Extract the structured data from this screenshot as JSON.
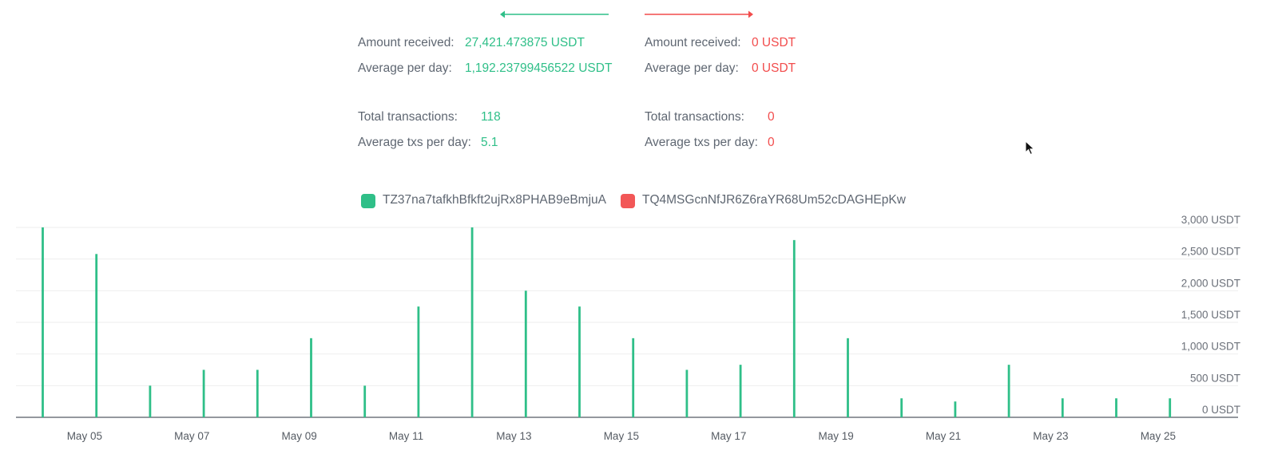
{
  "left_panel": {
    "color": "#2fbf88",
    "amount_received_label": "Amount received:",
    "amount_received_value": "27,421.473875 USDT",
    "avg_per_day_label": "Average per day:",
    "avg_per_day_value": "1,192.23799456522 USDT",
    "total_tx_label": "Total transactions:",
    "total_tx_value": "118",
    "avg_tx_label": "Average txs per day:",
    "avg_tx_value": "5.1"
  },
  "right_panel": {
    "color": "#f24c4c",
    "amount_received_label": "Amount received:",
    "amount_received_value": "0 USDT",
    "avg_per_day_label": "Average per day:",
    "avg_per_day_value": "0 USDT",
    "total_tx_label": "Total transactions:",
    "total_tx_value": "0",
    "avg_tx_label": "Average txs per day:",
    "avg_tx_value": "0"
  },
  "chart_data": {
    "type": "bar",
    "title": "",
    "xlabel": "",
    "ylabel": "",
    "ylim": [
      0,
      3000
    ],
    "grid": true,
    "legend_position": "top-center",
    "y_ticks": [
      "0 USDT",
      "500 USDT",
      "1,000 USDT",
      "1,500 USDT",
      "2,000 USDT",
      "2,500 USDT",
      "3,000 USDT"
    ],
    "x_tick_labels": [
      "May 05",
      "May 07",
      "May 09",
      "May 11",
      "May 13",
      "May 15",
      "May 17",
      "May 19",
      "May 21",
      "May 23",
      "May 25"
    ],
    "categories": [
      "May 04",
      "May 05",
      "May 06",
      "May 07",
      "May 08",
      "May 09",
      "May 10",
      "May 11",
      "May 12",
      "May 13",
      "May 14",
      "May 15",
      "May 16",
      "May 17",
      "May 18",
      "May 19",
      "May 20",
      "May 21",
      "May 22",
      "May 23",
      "May 24",
      "May 25",
      "May 26"
    ],
    "series": [
      {
        "name": "TZ37na7tafkhBfkft2ujRx8PHAB9eBmjuA",
        "color": "#2fbf88",
        "values": [
          3000,
          2580,
          500,
          750,
          750,
          1250,
          500,
          1750,
          3000,
          2000,
          1750,
          1250,
          750,
          830,
          2800,
          1250,
          300,
          250,
          830,
          300,
          300,
          300,
          0
        ]
      },
      {
        "name": "TQ4MSGcnNfJR6Z6raYR68Um52cDAGHEpKw",
        "color": "#f25757",
        "values": [
          0,
          0,
          0,
          0,
          0,
          0,
          0,
          0,
          0,
          0,
          0,
          0,
          0,
          0,
          0,
          0,
          0,
          0,
          0,
          0,
          0,
          0,
          0
        ]
      }
    ]
  }
}
